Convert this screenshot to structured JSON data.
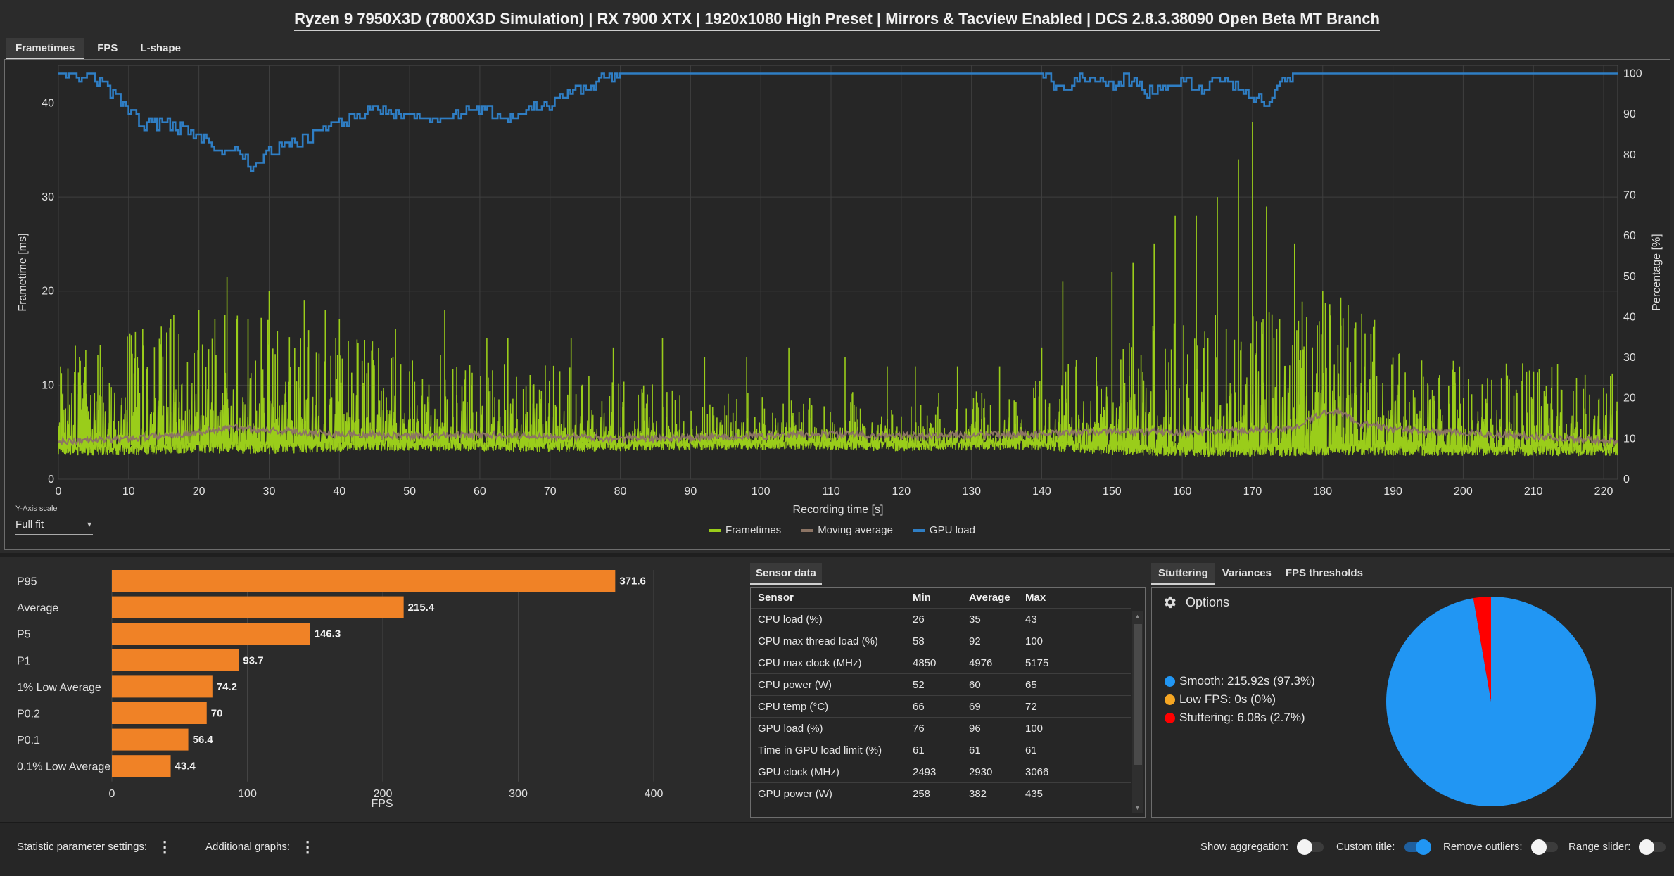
{
  "title": "Ryzen 9 7950X3D (7800X3D Simulation) | RX 7900 XTX | 1920x1080 High Preset | Mirrors & Tacview Enabled | DCS 2.8.3.38090 Open Beta MT Branch",
  "tabs": [
    {
      "label": "Frametimes",
      "active": true
    },
    {
      "label": "FPS",
      "active": false
    },
    {
      "label": "L-shape",
      "active": false
    }
  ],
  "frametime_chart": {
    "y_axis_label": "Frametime [ms]",
    "y2_axis_label": "Percentage [%]",
    "x_axis_label": "Recording time [s]",
    "y_ticks": [
      "0",
      "10",
      "20",
      "30",
      "40"
    ],
    "y2_ticks": [
      "0",
      "10",
      "20",
      "30",
      "40",
      "50",
      "60",
      "70",
      "80",
      "90",
      "100"
    ],
    "x_ticks": [
      "0",
      "10",
      "20",
      "30",
      "40",
      "50",
      "60",
      "70",
      "80",
      "90",
      "100",
      "110",
      "120",
      "130",
      "140",
      "150",
      "160",
      "170",
      "180",
      "190",
      "200",
      "210",
      "220"
    ],
    "legend": [
      {
        "label": "Frametimes",
        "color": "#9acd1a"
      },
      {
        "label": "Moving average",
        "color": "#8c7464"
      },
      {
        "label": "GPU load",
        "color": "#2f7ec4"
      }
    ]
  },
  "y_axis_scale": {
    "label": "Y-Axis scale",
    "value": "Full fit"
  },
  "chart_data": [
    {
      "type": "line",
      "title": "",
      "xlabel": "Recording time [s]",
      "ylabel": "Frametime [ms]",
      "y2label": "Percentage [%]",
      "xlim": [
        0,
        222
      ],
      "ylim": [
        0,
        44
      ],
      "y2lim": [
        0,
        102
      ],
      "grid": true,
      "legend": "bottom-center",
      "series": [
        {
          "name": "Frametimes",
          "axis": "left",
          "x": [
            0,
            10,
            20,
            30,
            40,
            50,
            60,
            70,
            80,
            90,
            100,
            110,
            120,
            130,
            140,
            150,
            160,
            170,
            175,
            180,
            185,
            190,
            200,
            210,
            222
          ],
          "y_low": [
            2.5,
            2.6,
            2.8,
            2.7,
            2.9,
            3.0,
            3.0,
            2.9,
            3.0,
            3.1,
            3.1,
            3.1,
            3.0,
            3.1,
            3.1,
            2.6,
            2.4,
            2.4,
            2.4,
            2.5,
            2.6,
            2.5,
            2.5,
            2.5,
            2.5
          ],
          "y_high": [
            9,
            10,
            12,
            11,
            10,
            9,
            8,
            8,
            7,
            6,
            6,
            6,
            6,
            6,
            7,
            10,
            11,
            12,
            12,
            13,
            13,
            9,
            8,
            8,
            8
          ],
          "spikes": [
            [
              3,
              13
            ],
            [
              12,
              16
            ],
            [
              16,
              17
            ],
            [
              20,
              18
            ],
            [
              24,
              21.5
            ],
            [
              27,
              17
            ],
            [
              30,
              20
            ],
            [
              35,
              19
            ],
            [
              38,
              18
            ],
            [
              40,
              17
            ],
            [
              48,
              16
            ],
            [
              55,
              18
            ],
            [
              61,
              15
            ],
            [
              64,
              15
            ],
            [
              73,
              15
            ],
            [
              79,
              14
            ],
            [
              86,
              15
            ],
            [
              92,
              13
            ],
            [
              98,
              13
            ],
            [
              104,
              14
            ],
            [
              112,
              13
            ],
            [
              118,
              12
            ],
            [
              122,
              12
            ],
            [
              128,
              12
            ],
            [
              134,
              12
            ],
            [
              140,
              14
            ],
            [
              143,
              21
            ],
            [
              150,
              22
            ],
            [
              153,
              23
            ],
            [
              156,
              25
            ],
            [
              159,
              28
            ],
            [
              162,
              28
            ],
            [
              165,
              30
            ],
            [
              168,
              34
            ],
            [
              170,
              38
            ],
            [
              172,
              29
            ],
            [
              176,
              25
            ],
            [
              180,
              20
            ],
            [
              186,
              12
            ],
            [
              195,
              10
            ],
            [
              210,
              10
            ],
            [
              218,
              9
            ]
          ]
        },
        {
          "name": "Moving average",
          "axis": "left",
          "x": [
            0,
            10,
            20,
            25,
            30,
            40,
            50,
            60,
            70,
            80,
            90,
            100,
            110,
            120,
            130,
            140,
            150,
            160,
            170,
            175,
            178,
            180,
            182,
            185,
            190,
            200,
            210,
            215,
            222
          ],
          "y": [
            4.0,
            4.3,
            5.0,
            5.5,
            5.2,
            4.8,
            4.6,
            4.7,
            4.6,
            4.3,
            4.4,
            4.6,
            4.8,
            4.6,
            4.7,
            4.8,
            5.1,
            5.0,
            5.2,
            5.3,
            6.2,
            7.0,
            7.3,
            6.0,
            5.3,
            4.9,
            4.6,
            4.3,
            4.0
          ]
        },
        {
          "name": "GPU load",
          "axis": "right",
          "x": [
            0,
            5,
            8,
            10,
            12,
            15,
            20,
            23,
            25,
            28,
            30,
            33,
            36,
            40,
            45,
            50,
            55,
            60,
            65,
            70,
            75,
            78,
            80,
            85,
            90,
            100,
            110,
            120,
            130,
            140,
            143,
            145,
            150,
            152,
            155,
            160,
            163,
            165,
            170,
            172,
            175,
            176,
            180,
            190,
            200,
            210,
            222
          ],
          "y": [
            100,
            99,
            95,
            91,
            87,
            88,
            85,
            80,
            82,
            76,
            81,
            82,
            85,
            88,
            91,
            90,
            89,
            91,
            89,
            93,
            97,
            99,
            100,
            100,
            100,
            100,
            100,
            100,
            100,
            100,
            96,
            99,
            97,
            99,
            95,
            98,
            96,
            99,
            95,
            93,
            99,
            100,
            100,
            100,
            100,
            100,
            100
          ]
        }
      ]
    },
    {
      "type": "bar",
      "title": "",
      "xlabel": "FPS",
      "xlim": [
        0,
        400
      ],
      "categories": [
        "P95",
        "Average",
        "P5",
        "P1",
        "1% Low Average",
        "P0.2",
        "P0.1",
        "0.1% Low Average"
      ],
      "values": [
        371.6,
        215.4,
        146.3,
        93.7,
        74.2,
        70,
        56.4,
        43.4
      ],
      "x_ticks": [
        "0",
        "100",
        "200",
        "300",
        "400"
      ],
      "color": "#f08226"
    },
    {
      "type": "pie",
      "title": "",
      "labels": [
        "Smooth",
        "Low FPS",
        "Stuttering"
      ],
      "values": [
        97.3,
        0,
        2.7
      ],
      "colors": [
        "#2196f3",
        "#f5a623",
        "#ff0000"
      ]
    }
  ],
  "sensor_tab": "Sensor data",
  "sensor_table": {
    "headers": [
      "Sensor",
      "Min",
      "Average",
      "Max"
    ],
    "rows": [
      [
        "CPU load (%)",
        "26",
        "35",
        "43"
      ],
      [
        "CPU max thread load (%)",
        "58",
        "92",
        "100"
      ],
      [
        "CPU max clock (MHz)",
        "4850",
        "4976",
        "5175"
      ],
      [
        "CPU power (W)",
        "52",
        "60",
        "65"
      ],
      [
        "CPU temp (°C)",
        "66",
        "69",
        "72"
      ],
      [
        "GPU load (%)",
        "76",
        "96",
        "100"
      ],
      [
        "Time in GPU load limit (%)",
        "61",
        "61",
        "61"
      ],
      [
        "GPU clock (MHz)",
        "2493",
        "2930",
        "3066"
      ],
      [
        "GPU power (W)",
        "258",
        "382",
        "435"
      ]
    ]
  },
  "stutter_tabs": [
    {
      "label": "Stuttering",
      "active": true
    },
    {
      "label": "Variances",
      "active": false
    },
    {
      "label": "FPS thresholds",
      "active": false
    }
  ],
  "stutter": {
    "options_label": "Options",
    "legend": [
      {
        "text": "Smooth:  215.92s (97.3%)",
        "color": "#2196f3"
      },
      {
        "text": "Low FPS:  0s (0%)",
        "color": "#f5a623"
      },
      {
        "text": "Stuttering:  6.08s (2.7%)",
        "color": "#ff0000"
      }
    ]
  },
  "bottom_bar": {
    "statistic_settings": "Statistic parameter settings:",
    "additional_graphs": "Additional graphs:",
    "show_aggregation": {
      "label": "Show aggregation:",
      "on": false
    },
    "custom_title": {
      "label": "Custom title:",
      "on": true
    },
    "remove_outliers": {
      "label": "Remove outliers:",
      "on": false
    },
    "range_slider": {
      "label": "Range slider:",
      "on": false
    }
  }
}
